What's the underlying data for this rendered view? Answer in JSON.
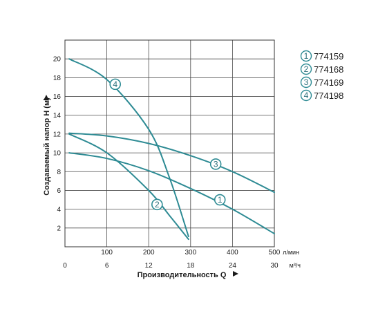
{
  "chart_data": {
    "type": "line",
    "xlabel": "Производительность Q",
    "ylabel": "Создаваемый напор H (м)",
    "x_unit_primary": "л/мин",
    "x_unit_secondary": "м³/ч",
    "xlim": [
      0,
      500
    ],
    "ylim": [
      0,
      22
    ],
    "x_ticks": [
      0,
      100,
      200,
      300,
      400,
      500
    ],
    "x_ticks_secondary": [
      0,
      6,
      12,
      18,
      24,
      30
    ],
    "y_ticks": [
      2,
      4,
      6,
      8,
      10,
      12,
      14,
      16,
      18,
      20
    ],
    "grid": true,
    "legend_position": "right",
    "line_color": "#2e8b94",
    "series": [
      {
        "name": "774159",
        "marker": "1",
        "x": [
          10,
          100,
          200,
          300,
          400,
          500
        ],
        "y": [
          10.0,
          9.4,
          8.1,
          6.2,
          4.0,
          1.4
        ]
      },
      {
        "name": "774168",
        "marker": "2",
        "x": [
          10,
          100,
          200,
          250,
          295
        ],
        "y": [
          12.0,
          10.0,
          6.0,
          3.3,
          0.8
        ]
      },
      {
        "name": "774169",
        "marker": "3",
        "x": [
          10,
          100,
          200,
          300,
          400,
          500
        ],
        "y": [
          12.1,
          11.8,
          11.0,
          9.7,
          8.0,
          5.8
        ]
      },
      {
        "name": "774198",
        "marker": "4",
        "x": [
          10,
          100,
          200,
          250,
          295
        ],
        "y": [
          20.0,
          17.8,
          12.5,
          7.3,
          1.1
        ]
      }
    ],
    "markers": [
      {
        "label": "4",
        "x": 120,
        "y": 17.3
      },
      {
        "label": "2",
        "x": 220,
        "y": 4.5
      },
      {
        "label": "3",
        "x": 360,
        "y": 8.8
      },
      {
        "label": "1",
        "x": 370,
        "y": 5.0
      }
    ]
  }
}
